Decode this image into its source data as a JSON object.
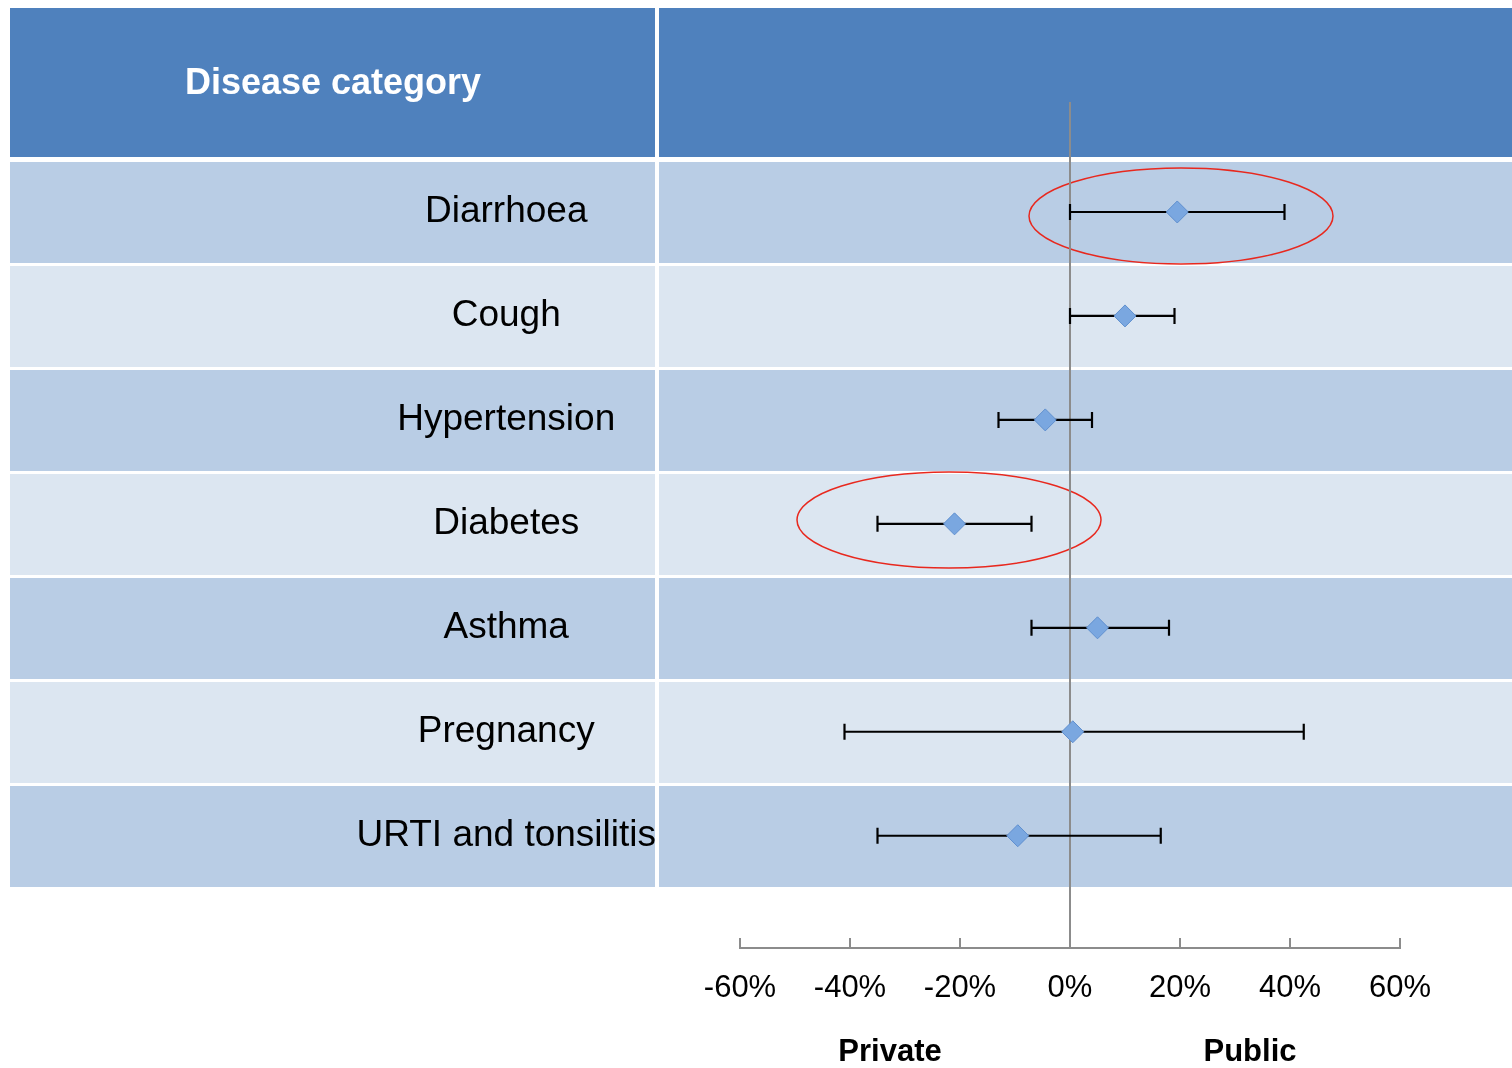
{
  "chart_data": {
    "type": "scatter",
    "orientation": "horizontal",
    "categories": [
      "Diarrhoea",
      "Cough",
      "Hypertension",
      "Diabetes",
      "Asthma",
      "Pregnancy",
      "URTI and tonsilitis"
    ],
    "values": [
      19.5,
      10,
      -4.5,
      -21,
      5,
      0.5,
      -9.5
    ],
    "errors": [
      [
        0,
        39
      ],
      [
        0,
        19
      ],
      [
        -13,
        4
      ],
      [
        -35,
        -7
      ],
      [
        -7,
        18
      ],
      [
        -41,
        42.5
      ],
      [
        -35,
        16.5
      ]
    ],
    "color": "#7aa7e0",
    "marker": "diamond",
    "xlim": [
      -60,
      60
    ],
    "xticks": [
      {
        "value": -60,
        "label": "-60%"
      },
      {
        "value": -40,
        "label": "-40%"
      },
      {
        "value": -20,
        "label": "-20%"
      },
      {
        "value": 0,
        "label": "0%"
      },
      {
        "value": 20,
        "label": "20%"
      },
      {
        "value": 40,
        "label": "40%"
      },
      {
        "value": 60,
        "label": "60%"
      }
    ],
    "annotations": [
      "Disease category",
      "Private",
      "Public"
    ],
    "ref_lines": [
      {
        "axis": "x",
        "value": 0,
        "color": "#8c8c8c"
      }
    ],
    "grid": false,
    "legend": false
  }
}
